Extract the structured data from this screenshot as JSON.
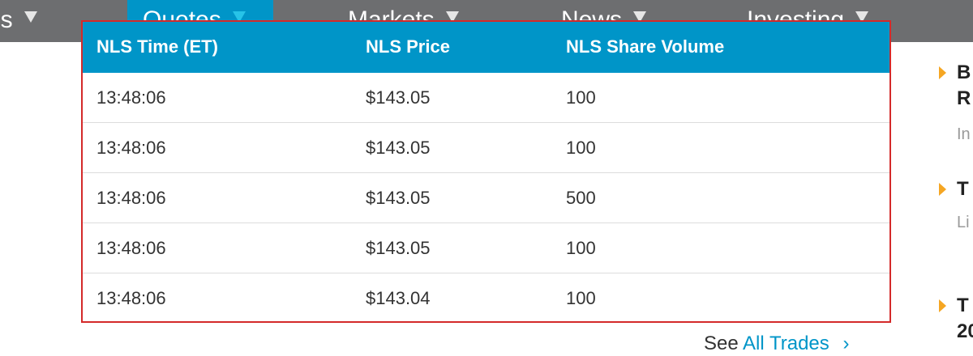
{
  "nav": {
    "items": [
      {
        "label": "es"
      },
      {
        "label": "Quotes"
      },
      {
        "label": "Markets"
      },
      {
        "label": "News"
      },
      {
        "label": "Investing"
      }
    ]
  },
  "table": {
    "headers": [
      "NLS Time (ET)",
      "NLS Price",
      "NLS Share Volume"
    ],
    "rows": [
      [
        "13:48:06",
        "$143.05",
        "100"
      ],
      [
        "13:48:06",
        "$143.05",
        "100"
      ],
      [
        "13:48:06",
        "$143.05",
        "500"
      ],
      [
        "13:48:06",
        "$143.05",
        "100"
      ],
      [
        "13:48:06",
        "$143.04",
        "100"
      ]
    ]
  },
  "sidebar": {
    "items": [
      {
        "title": "B\nR",
        "meta": "In"
      },
      {
        "title": "T",
        "meta": "Li"
      },
      {
        "title": "T\n20",
        "meta": ""
      }
    ]
  },
  "footer": {
    "see_prefix": "See",
    "see_link": "All Trades",
    "see_arrow": "›"
  }
}
